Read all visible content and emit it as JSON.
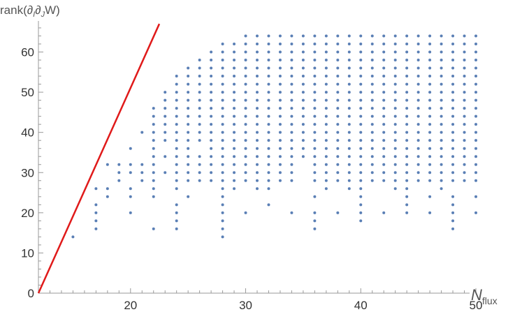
{
  "chart_data": {
    "type": "scatter",
    "ylabel": "rank(∂_I∂_J W)",
    "xlabel": "N_flux",
    "xlim": [
      12,
      50.5
    ],
    "ylim": [
      0,
      67
    ],
    "xticks": [
      "20",
      "30",
      "40",
      "50"
    ],
    "yticks": [
      "0",
      "10",
      "20",
      "30",
      "40",
      "50",
      "60"
    ],
    "grid": false,
    "colors": {
      "points": "#5a7fb5",
      "line": "#e01a1a",
      "axes": "#999999"
    },
    "reference_line": {
      "from": [
        12,
        0
      ],
      "to": [
        22.5,
        67
      ]
    },
    "columns": [
      {
        "x": 15,
        "y": [
          14
        ]
      },
      {
        "x": 17,
        "y": [
          16,
          18,
          20,
          22,
          26
        ]
      },
      {
        "x": 18,
        "y": [
          24,
          26,
          32
        ]
      },
      {
        "x": 19,
        "y": [
          28,
          30,
          32
        ]
      },
      {
        "x": 20,
        "y": [
          20,
          24,
          26,
          30,
          32,
          36
        ]
      },
      {
        "x": 21,
        "y": [
          28,
          30,
          32,
          40
        ]
      },
      {
        "x": 22,
        "y": [
          16,
          24,
          26,
          28,
          30,
          32,
          34,
          36,
          38,
          40,
          42,
          44,
          46
        ]
      },
      {
        "x": 23,
        "y": [
          30,
          34,
          38,
          40,
          42,
          44,
          46,
          48,
          50
        ]
      },
      {
        "x": 24,
        "y": [
          16,
          18,
          20,
          22,
          26,
          28,
          30,
          32,
          34,
          36,
          38,
          40,
          42,
          44,
          46,
          48,
          50,
          52,
          54
        ]
      },
      {
        "x": 25,
        "y": [
          24,
          28,
          30,
          32,
          34,
          36,
          38,
          40,
          42,
          44,
          46,
          48,
          50,
          52,
          54,
          56
        ]
      },
      {
        "x": 26,
        "y": [
          28,
          30,
          32,
          34,
          38,
          40,
          42,
          44,
          46,
          48,
          50,
          52,
          54,
          56,
          58
        ]
      },
      {
        "x": 27,
        "y": [
          28,
          30,
          32,
          34,
          36,
          38,
          40,
          42,
          44,
          46,
          48,
          50,
          52,
          54,
          56,
          58,
          60
        ]
      },
      {
        "x": 28,
        "y": [
          14,
          16,
          18,
          20,
          22,
          24,
          26,
          28,
          30,
          32,
          34,
          36,
          38,
          40,
          42,
          44,
          46,
          48,
          50,
          52,
          54,
          56,
          58,
          60,
          62
        ]
      },
      {
        "x": 29,
        "y": [
          26,
          28,
          30,
          32,
          34,
          36,
          38,
          40,
          42,
          44,
          46,
          48,
          50,
          52,
          54,
          56,
          58,
          60,
          62
        ]
      },
      {
        "x": 30,
        "y": [
          20,
          28,
          30,
          32,
          34,
          36,
          38,
          40,
          42,
          44,
          46,
          48,
          50,
          52,
          54,
          56,
          58,
          60,
          62,
          64
        ]
      },
      {
        "x": 31,
        "y": [
          26,
          28,
          30,
          32,
          34,
          36,
          38,
          40,
          42,
          44,
          46,
          48,
          50,
          52,
          54,
          56,
          58,
          60,
          62,
          64
        ]
      },
      {
        "x": 32,
        "y": [
          22,
          26,
          28,
          30,
          32,
          34,
          36,
          38,
          40,
          42,
          44,
          46,
          48,
          50,
          52,
          54,
          56,
          58,
          60,
          62,
          64
        ]
      },
      {
        "x": 33,
        "y": [
          28,
          30,
          32,
          34,
          36,
          38,
          40,
          42,
          44,
          46,
          48,
          50,
          52,
          54,
          56,
          58,
          60,
          62,
          64
        ]
      },
      {
        "x": 34,
        "y": [
          20,
          28,
          30,
          32,
          34,
          36,
          38,
          40,
          42,
          44,
          46,
          48,
          50,
          52,
          54,
          56,
          58,
          60,
          62,
          64
        ]
      },
      {
        "x": 35,
        "y": [
          34,
          36,
          38,
          40,
          42,
          44,
          46,
          48,
          50,
          52,
          54,
          56,
          58,
          60,
          62,
          64
        ]
      },
      {
        "x": 36,
        "y": [
          16,
          18,
          20,
          24,
          28,
          30,
          32,
          34,
          36,
          38,
          40,
          42,
          44,
          46,
          48,
          50,
          52,
          54,
          56,
          58,
          60,
          62,
          64
        ]
      },
      {
        "x": 37,
        "y": [
          26,
          28,
          30,
          32,
          34,
          36,
          38,
          40,
          42,
          44,
          46,
          48,
          50,
          52,
          54,
          56,
          58,
          60,
          62,
          64
        ]
      },
      {
        "x": 38,
        "y": [
          20,
          28,
          30,
          32,
          34,
          36,
          38,
          40,
          42,
          44,
          46,
          48,
          50,
          52,
          54,
          56,
          58,
          60,
          62,
          64
        ]
      },
      {
        "x": 39,
        "y": [
          26,
          28,
          30,
          32,
          34,
          36,
          38,
          40,
          42,
          44,
          46,
          48,
          50,
          52,
          54,
          56,
          58,
          60,
          62,
          64
        ]
      },
      {
        "x": 40,
        "y": [
          18,
          20,
          22,
          24,
          26,
          28,
          30,
          32,
          34,
          36,
          38,
          40,
          42,
          44,
          46,
          48,
          50,
          52,
          54,
          56,
          58,
          60,
          62,
          64
        ]
      },
      {
        "x": 41,
        "y": [
          28,
          30,
          32,
          34,
          36,
          38,
          40,
          42,
          44,
          46,
          48,
          50,
          52,
          54,
          56,
          58,
          60,
          62,
          64
        ]
      },
      {
        "x": 42,
        "y": [
          20,
          28,
          30,
          32,
          34,
          36,
          38,
          40,
          42,
          44,
          46,
          48,
          50,
          52,
          54,
          56,
          58,
          60,
          62,
          64
        ]
      },
      {
        "x": 43,
        "y": [
          26,
          28,
          30,
          32,
          34,
          36,
          38,
          40,
          42,
          44,
          46,
          48,
          50,
          52,
          54,
          56,
          58,
          60,
          62,
          64
        ]
      },
      {
        "x": 44,
        "y": [
          20,
          22,
          24,
          26,
          28,
          30,
          32,
          34,
          36,
          38,
          40,
          42,
          44,
          46,
          48,
          50,
          52,
          54,
          56,
          58,
          60,
          62,
          64
        ]
      },
      {
        "x": 45,
        "y": [
          28,
          30,
          32,
          34,
          36,
          38,
          40,
          42,
          44,
          46,
          48,
          50,
          52,
          54,
          56,
          58,
          60,
          62,
          64
        ]
      },
      {
        "x": 46,
        "y": [
          20,
          24,
          28,
          30,
          32,
          34,
          36,
          38,
          40,
          42,
          44,
          46,
          48,
          50,
          52,
          54,
          56,
          58,
          60,
          62,
          64
        ]
      },
      {
        "x": 47,
        "y": [
          26,
          28,
          30,
          32,
          34,
          36,
          38,
          40,
          42,
          44,
          46,
          48,
          50,
          52,
          54,
          56,
          58,
          60,
          62,
          64
        ]
      },
      {
        "x": 48,
        "y": [
          16,
          18,
          20,
          22,
          24,
          28,
          30,
          32,
          34,
          36,
          38,
          40,
          42,
          44,
          46,
          48,
          50,
          52,
          54,
          56,
          58,
          60,
          62,
          64
        ]
      },
      {
        "x": 49,
        "y": [
          28,
          30,
          32,
          34,
          36,
          38,
          40,
          42,
          44,
          46,
          48,
          50,
          52,
          54,
          56,
          58,
          60,
          62,
          64
        ]
      },
      {
        "x": 50,
        "y": [
          20,
          24,
          28,
          30,
          32,
          34,
          36,
          38,
          40,
          42,
          44,
          46,
          48,
          50,
          52,
          54,
          56,
          58,
          60,
          62,
          64
        ]
      }
    ]
  }
}
